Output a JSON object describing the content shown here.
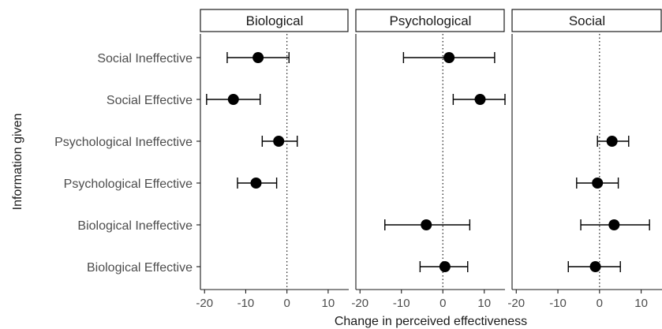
{
  "chart_data": {
    "type": "scatter",
    "subtype": "point-range forest plot, faceted",
    "xlabel": "Change in perceived effectiveness",
    "ylabel": "Information given",
    "xlim": [
      -21,
      15
    ],
    "x_ticks": [
      -20,
      -10,
      0,
      10
    ],
    "reference_line_x": 0,
    "grid": false,
    "legend": "none",
    "categories": [
      "Social Ineffective",
      "Social Effective",
      "Psychological Ineffective",
      "Psychological Effective",
      "Biological Ineffective",
      "Biological Effective"
    ],
    "facets": [
      {
        "name": "Biological",
        "points": [
          {
            "category": "Social Ineffective",
            "estimate": -7,
            "lower": -14.5,
            "upper": 0.5
          },
          {
            "category": "Social Effective",
            "estimate": -13,
            "lower": -19.5,
            "upper": -6.5
          },
          {
            "category": "Psychological Ineffective",
            "estimate": -2,
            "lower": -6,
            "upper": 2.5
          },
          {
            "category": "Psychological Effective",
            "estimate": -7.5,
            "lower": -12,
            "upper": -2.5
          }
        ]
      },
      {
        "name": "Psychological",
        "points": [
          {
            "category": "Social Ineffective",
            "estimate": 1.5,
            "lower": -9.5,
            "upper": 12.5
          },
          {
            "category": "Social Effective",
            "estimate": 9,
            "lower": 2.5,
            "upper": 15
          },
          {
            "category": "Biological Ineffective",
            "estimate": -4,
            "lower": -14,
            "upper": 6.5
          },
          {
            "category": "Biological Effective",
            "estimate": 0.5,
            "lower": -5.5,
            "upper": 6
          }
        ]
      },
      {
        "name": "Social",
        "points": [
          {
            "category": "Psychological Ineffective",
            "estimate": 3,
            "lower": -0.5,
            "upper": 7
          },
          {
            "category": "Psychological Effective",
            "estimate": -0.5,
            "lower": -5.5,
            "upper": 4.5
          },
          {
            "category": "Biological Ineffective",
            "estimate": 3.5,
            "lower": -4.5,
            "upper": 12
          },
          {
            "category": "Biological Effective",
            "estimate": -1,
            "lower": -7.5,
            "upper": 5
          }
        ]
      }
    ],
    "colors": {
      "points": "#000000",
      "text": "#4d4d4d",
      "axis": "#1a1a1a"
    }
  }
}
